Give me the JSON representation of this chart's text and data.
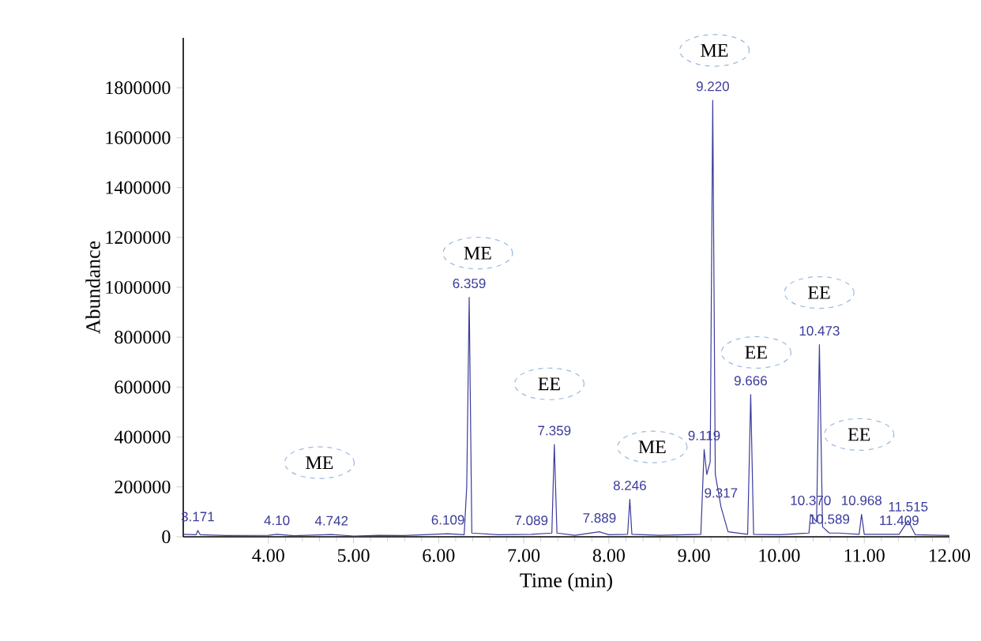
{
  "chart_data": {
    "type": "line",
    "xlabel": "Time (min)",
    "ylabel": "Abundance",
    "xlim": [
      3.0,
      12.0
    ],
    "xticks": [
      {
        "value": 4,
        "label": "4.00"
      },
      {
        "value": 5,
        "label": "5.00"
      },
      {
        "value": 6,
        "label": "6.00"
      },
      {
        "value": 7,
        "label": "7.00"
      },
      {
        "value": 8,
        "label": "8.00"
      },
      {
        "value": 9,
        "label": "9.00"
      },
      {
        "value": 10,
        "label": "10.00"
      },
      {
        "value": 11,
        "label": "11.00"
      },
      {
        "value": 12,
        "label": "12.00"
      }
    ],
    "ylim": [
      0,
      2000000
    ],
    "yticks": [
      0,
      200000,
      400000,
      600000,
      800000,
      1000000,
      1200000,
      1400000,
      1600000,
      1800000
    ],
    "grid": false,
    "marker": "none",
    "line_style": "solid",
    "series": [
      {
        "color": "#3c3c9c",
        "x": [
          3.0,
          3.15,
          3.171,
          3.2,
          3.5,
          4.0,
          4.1,
          4.3,
          4.742,
          5.0,
          5.3,
          5.6,
          6.109,
          6.3,
          6.33,
          6.359,
          6.39,
          6.7,
          7.089,
          7.33,
          7.359,
          7.39,
          7.6,
          7.889,
          8.0,
          8.22,
          8.246,
          8.27,
          8.6,
          9.08,
          9.119,
          9.15,
          9.19,
          9.22,
          9.25,
          9.317,
          9.4,
          9.63,
          9.666,
          9.7,
          10.0,
          10.35,
          10.37,
          10.44,
          10.473,
          10.51,
          10.589,
          10.7,
          10.94,
          10.968,
          11.0,
          11.409,
          11.515,
          11.6,
          12.0
        ],
        "values": [
          10000,
          8000,
          25000,
          8000,
          5000,
          6000,
          10000,
          4000,
          9000,
          3000,
          6000,
          5000,
          12000,
          8000,
          200000,
          960000,
          15000,
          8000,
          10000,
          15000,
          370000,
          15000,
          6000,
          20000,
          8000,
          10000,
          150000,
          10000,
          6000,
          10000,
          350000,
          250000,
          300000,
          1750000,
          250000,
          120000,
          20000,
          10000,
          570000,
          10000,
          8000,
          15000,
          90000,
          60000,
          770000,
          40000,
          15000,
          15000,
          10000,
          90000,
          10000,
          10000,
          65000,
          8000,
          5000
        ]
      }
    ],
    "annotations": [
      {
        "text": "3.171",
        "x": 3.171,
        "y": 25000
      },
      {
        "text": "4.10",
        "x": 4.1,
        "y": 10000
      },
      {
        "text": "4.742",
        "x": 4.742,
        "y": 9000
      },
      {
        "text": "6.109",
        "x": 6.109,
        "y": 12000
      },
      {
        "text": "6.359",
        "x": 6.359,
        "y": 960000
      },
      {
        "text": "7.089",
        "x": 7.089,
        "y": 10000
      },
      {
        "text": "7.359",
        "x": 7.359,
        "y": 370000
      },
      {
        "text": "7.889",
        "x": 7.889,
        "y": 20000
      },
      {
        "text": "8.246",
        "x": 8.246,
        "y": 150000
      },
      {
        "text": "9.119",
        "x": 9.119,
        "y": 350000
      },
      {
        "text": "9.220",
        "x": 9.22,
        "y": 1750000
      },
      {
        "text": "9.317",
        "x": 9.317,
        "y": 120000
      },
      {
        "text": "9.666",
        "x": 9.666,
        "y": 570000
      },
      {
        "text": "10.370",
        "x": 10.37,
        "y": 90000
      },
      {
        "text": "10.473",
        "x": 10.473,
        "y": 770000
      },
      {
        "text": "10.589",
        "x": 10.589,
        "y": 15000
      },
      {
        "text": "10.968",
        "x": 10.968,
        "y": 90000
      },
      {
        "text": "11.409",
        "x": 11.409,
        "y": 10000
      },
      {
        "text": "11.515",
        "x": 11.515,
        "y": 65000
      },
      {
        "text": "ME",
        "x": 4.6,
        "y": 297000
      },
      {
        "text": "ME",
        "x": 6.46,
        "y": 1137000
      },
      {
        "text": "EE",
        "x": 7.3,
        "y": 613000
      },
      {
        "text": "ME",
        "x": 8.51,
        "y": 360000
      },
      {
        "text": "ME",
        "x": 9.24,
        "y": 1950000
      },
      {
        "text": "EE",
        "x": 9.73,
        "y": 739000
      },
      {
        "text": "EE",
        "x": 10.47,
        "y": 979000
      },
      {
        "text": "EE",
        "x": 10.94,
        "y": 410000
      }
    ]
  }
}
